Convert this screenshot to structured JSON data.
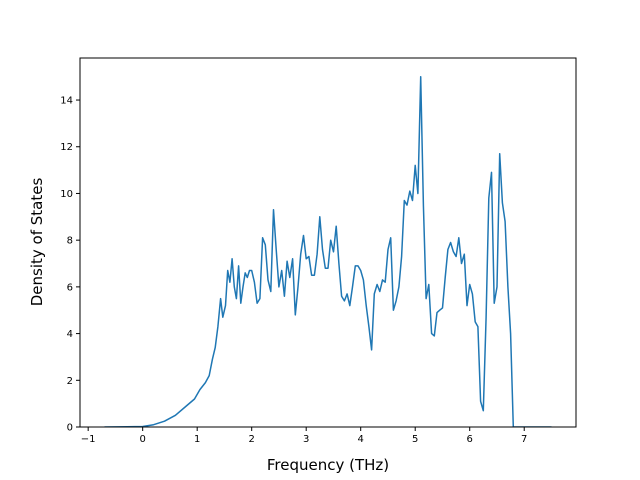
{
  "chart_data": {
    "type": "line",
    "title": "",
    "xlabel": "Frequency (THz)",
    "ylabel": "Density of States",
    "xlim": [
      -1.15,
      7.95
    ],
    "ylim": [
      0,
      15.8
    ],
    "xticks": [
      -1,
      0,
      1,
      2,
      3,
      4,
      5,
      6,
      7
    ],
    "yticks": [
      0,
      2,
      4,
      6,
      8,
      10,
      12,
      14
    ],
    "grid": false,
    "legend": "none",
    "series": [
      {
        "color": "#1f77b4",
        "x": [
          -0.7,
          0.0,
          0.2,
          0.4,
          0.6,
          0.8,
          0.95,
          1.05,
          1.15,
          1.22,
          1.28,
          1.33,
          1.38,
          1.43,
          1.47,
          1.52,
          1.56,
          1.6,
          1.64,
          1.68,
          1.72,
          1.76,
          1.8,
          1.84,
          1.88,
          1.92,
          1.96,
          2.0,
          2.05,
          2.1,
          2.15,
          2.2,
          2.25,
          2.3,
          2.35,
          2.4,
          2.45,
          2.5,
          2.55,
          2.6,
          2.65,
          2.7,
          2.75,
          2.8,
          2.85,
          2.9,
          2.95,
          3.0,
          3.05,
          3.1,
          3.15,
          3.2,
          3.25,
          3.3,
          3.35,
          3.4,
          3.45,
          3.5,
          3.55,
          3.6,
          3.65,
          3.7,
          3.75,
          3.8,
          3.85,
          3.9,
          3.95,
          4.0,
          4.05,
          4.1,
          4.15,
          4.2,
          4.25,
          4.3,
          4.35,
          4.4,
          4.45,
          4.5,
          4.55,
          4.6,
          4.65,
          4.7,
          4.75,
          4.8,
          4.85,
          4.9,
          4.95,
          5.0,
          5.05,
          5.1,
          5.15,
          5.2,
          5.25,
          5.3,
          5.35,
          5.4,
          5.45,
          5.5,
          5.55,
          5.6,
          5.65,
          5.7,
          5.75,
          5.8,
          5.85,
          5.9,
          5.95,
          6.0,
          6.05,
          6.1,
          6.15,
          6.2,
          6.25,
          6.3,
          6.35,
          6.4,
          6.45,
          6.5,
          6.55,
          6.6,
          6.65,
          6.7,
          6.75,
          6.8,
          6.9,
          7.0,
          7.5
        ],
        "y": [
          0,
          0.02,
          0.1,
          0.25,
          0.5,
          0.9,
          1.2,
          1.6,
          1.9,
          2.2,
          2.9,
          3.4,
          4.3,
          5.5,
          4.7,
          5.2,
          6.7,
          6.2,
          7.2,
          6.0,
          5.5,
          6.9,
          5.3,
          6.0,
          6.6,
          6.4,
          6.7,
          6.7,
          6.2,
          5.3,
          5.5,
          8.1,
          7.8,
          6.3,
          5.8,
          9.3,
          7.6,
          6.0,
          6.7,
          5.6,
          7.1,
          6.4,
          7.2,
          4.8,
          6.0,
          7.4,
          8.2,
          7.2,
          7.3,
          6.5,
          6.5,
          7.4,
          9.0,
          7.6,
          6.8,
          6.8,
          8.0,
          7.5,
          8.6,
          7.0,
          5.6,
          5.4,
          5.7,
          5.2,
          6.0,
          6.9,
          6.9,
          6.7,
          6.3,
          5.2,
          4.3,
          3.3,
          5.7,
          6.1,
          5.8,
          6.3,
          6.2,
          7.6,
          8.1,
          5.0,
          5.4,
          6.0,
          7.3,
          9.7,
          9.5,
          10.1,
          9.7,
          11.2,
          10.0,
          15.0,
          9.5,
          5.5,
          6.1,
          4.0,
          3.9,
          4.9,
          5.0,
          5.1,
          6.4,
          7.6,
          7.9,
          7.5,
          7.3,
          8.1,
          7.0,
          7.4,
          5.2,
          6.1,
          5.7,
          4.5,
          4.3,
          1.1,
          0.7,
          4.7,
          9.8,
          10.9,
          5.3,
          6.0,
          11.7,
          9.6,
          8.8,
          6.0,
          4.0,
          0.0,
          0.0,
          0.0,
          0.0
        ]
      }
    ]
  }
}
